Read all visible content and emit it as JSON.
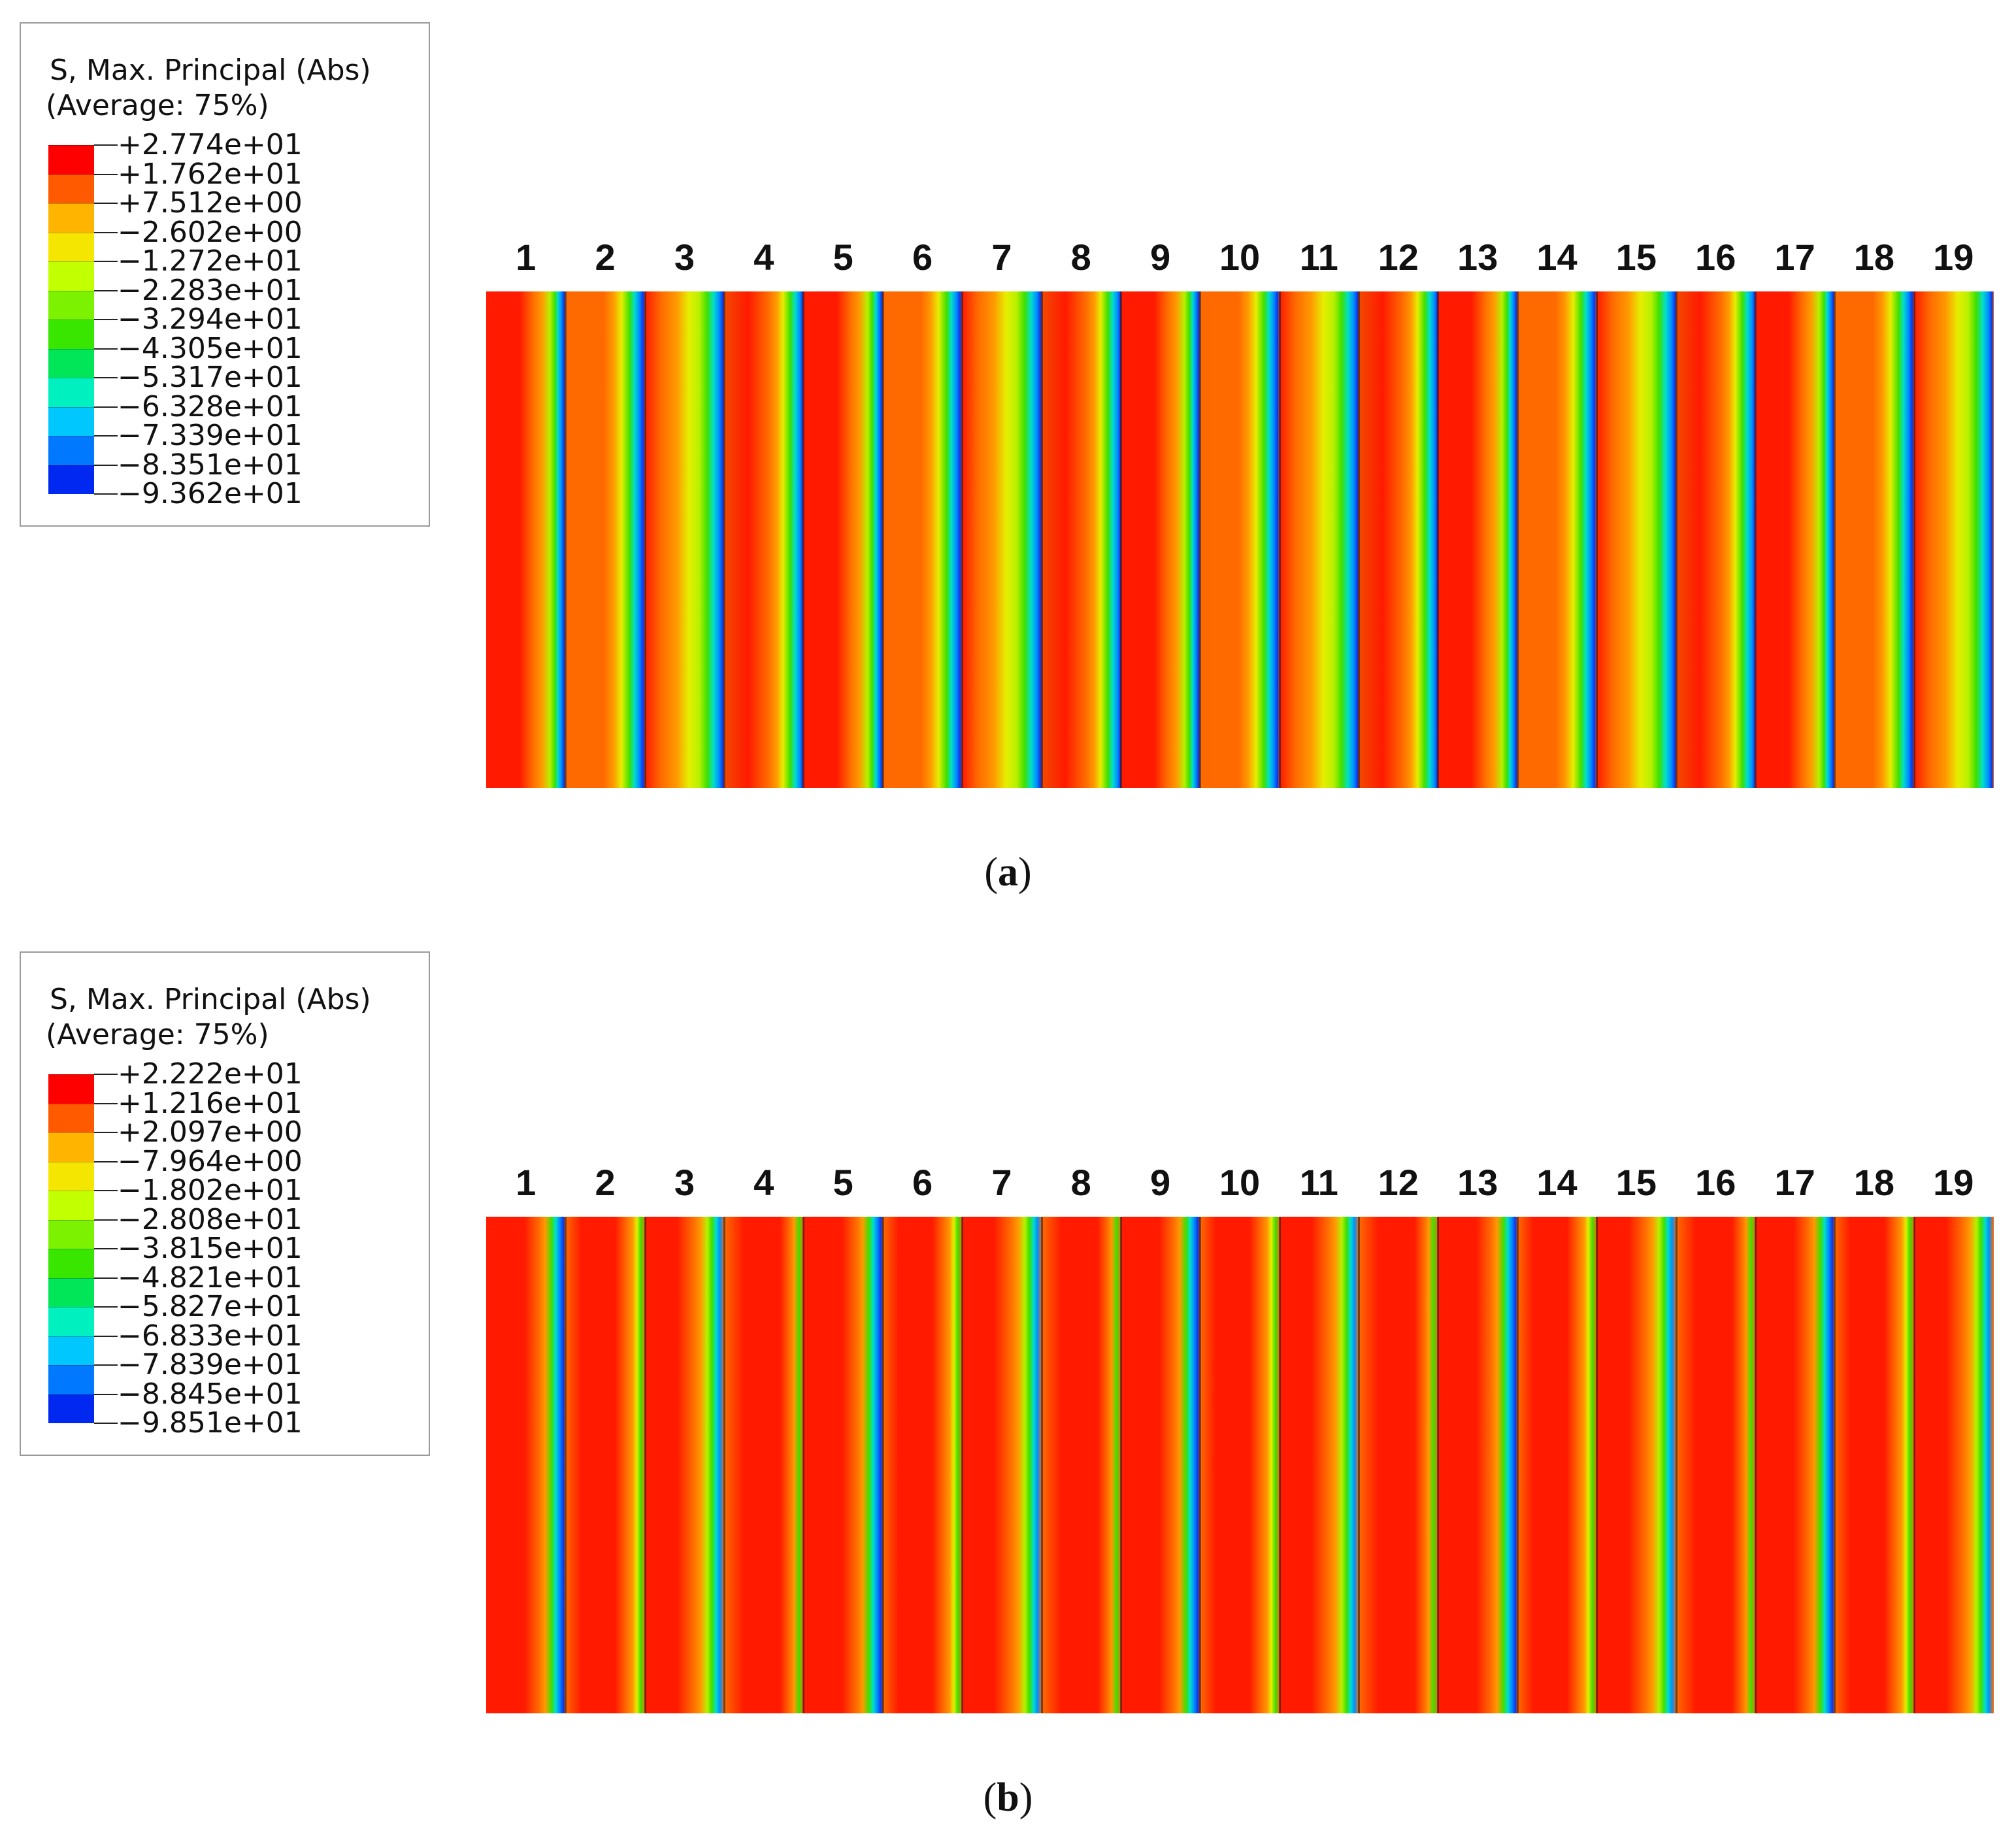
{
  "panels": [
    {
      "id": "a",
      "caption_letter": "a",
      "legend": {
        "title_line1": "S, Max. Principal (Abs)",
        "title_line2": "(Average: 75%)",
        "values": [
          "+2.774e+01",
          "+1.762e+01",
          "+7.512e+00",
          "−2.602e+00",
          "−1.272e+01",
          "−2.283e+01",
          "−3.294e+01",
          "−4.305e+01",
          "−5.317e+01",
          "−6.328e+01",
          "−7.339e+01",
          "−8.351e+01",
          "−9.362e+01"
        ]
      },
      "strip_labels": [
        "1",
        "2",
        "3",
        "4",
        "5",
        "6",
        "7",
        "8",
        "9",
        "10",
        "11",
        "12",
        "13",
        "14",
        "15",
        "16",
        "17",
        "18",
        "19"
      ]
    },
    {
      "id": "b",
      "caption_letter": "b",
      "legend": {
        "title_line1": "S, Max. Principal (Abs)",
        "title_line2": "(Average: 75%)",
        "values": [
          "+2.222e+01",
          "+1.216e+01",
          "+2.097e+00",
          "−7.964e+00",
          "−1.802e+01",
          "−2.808e+01",
          "−3.815e+01",
          "−4.821e+01",
          "−5.827e+01",
          "−6.833e+01",
          "−7.839e+01",
          "−8.845e+01",
          "−9.851e+01"
        ]
      },
      "strip_labels": [
        "1",
        "2",
        "3",
        "4",
        "5",
        "6",
        "7",
        "8",
        "9",
        "10",
        "11",
        "12",
        "13",
        "14",
        "15",
        "16",
        "17",
        "18",
        "19"
      ]
    }
  ],
  "colormap": [
    "#ff0000",
    "#ff5a00",
    "#ffb400",
    "#f4e600",
    "#c2ff00",
    "#7cf200",
    "#38e600",
    "#00e658",
    "#00f0c0",
    "#00c8ff",
    "#0078ff",
    "#0028f0"
  ]
}
